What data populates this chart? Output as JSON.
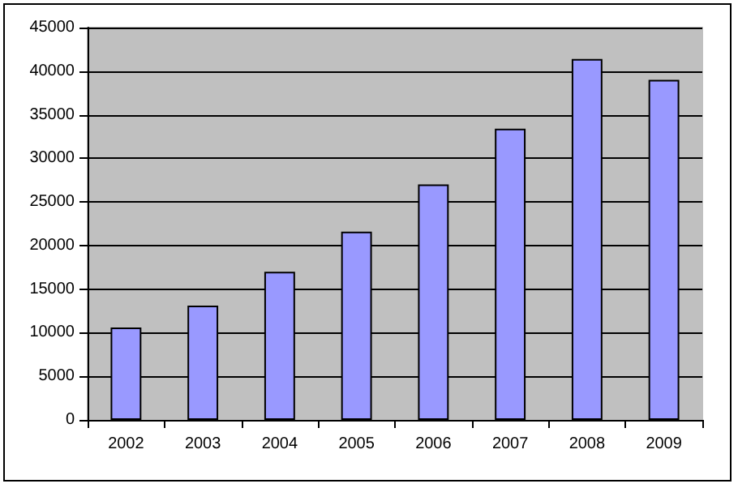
{
  "chart_data": {
    "type": "bar",
    "categories": [
      "2002",
      "2003",
      "2004",
      "2005",
      "2006",
      "2007",
      "2008",
      "2009"
    ],
    "values": [
      10600,
      13100,
      17000,
      21600,
      27000,
      33400,
      41400,
      39000
    ],
    "color": "#9999ff",
    "ylim": [
      0,
      45000
    ],
    "yticks": [
      0,
      5000,
      10000,
      15000,
      20000,
      25000,
      30000,
      35000,
      40000,
      45000
    ],
    "grid": "y"
  }
}
